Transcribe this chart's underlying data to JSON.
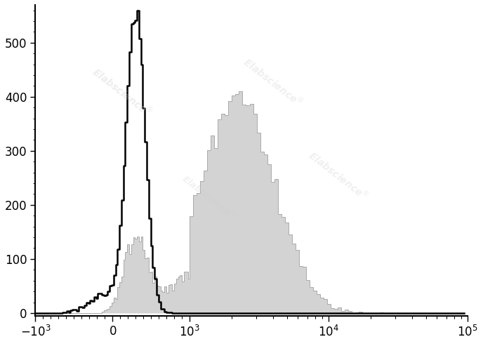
{
  "xlim": [
    -1000,
    100000
  ],
  "ylim": [
    -5,
    570
  ],
  "yticks": [
    0,
    100,
    200,
    300,
    400,
    500
  ],
  "background_color": "#ffffff",
  "watermark_text": "Elabscience",
  "watermark_color": "lightgray",
  "black_peak_x": 300,
  "black_peak_y": 560,
  "black_sigma": 120,
  "gray_peak_x": 2200,
  "gray_peak_y": 410,
  "gray_sigma": 1200,
  "tick_label_fontsize": 12,
  "linthresh": 1000,
  "linscale": 0.5
}
